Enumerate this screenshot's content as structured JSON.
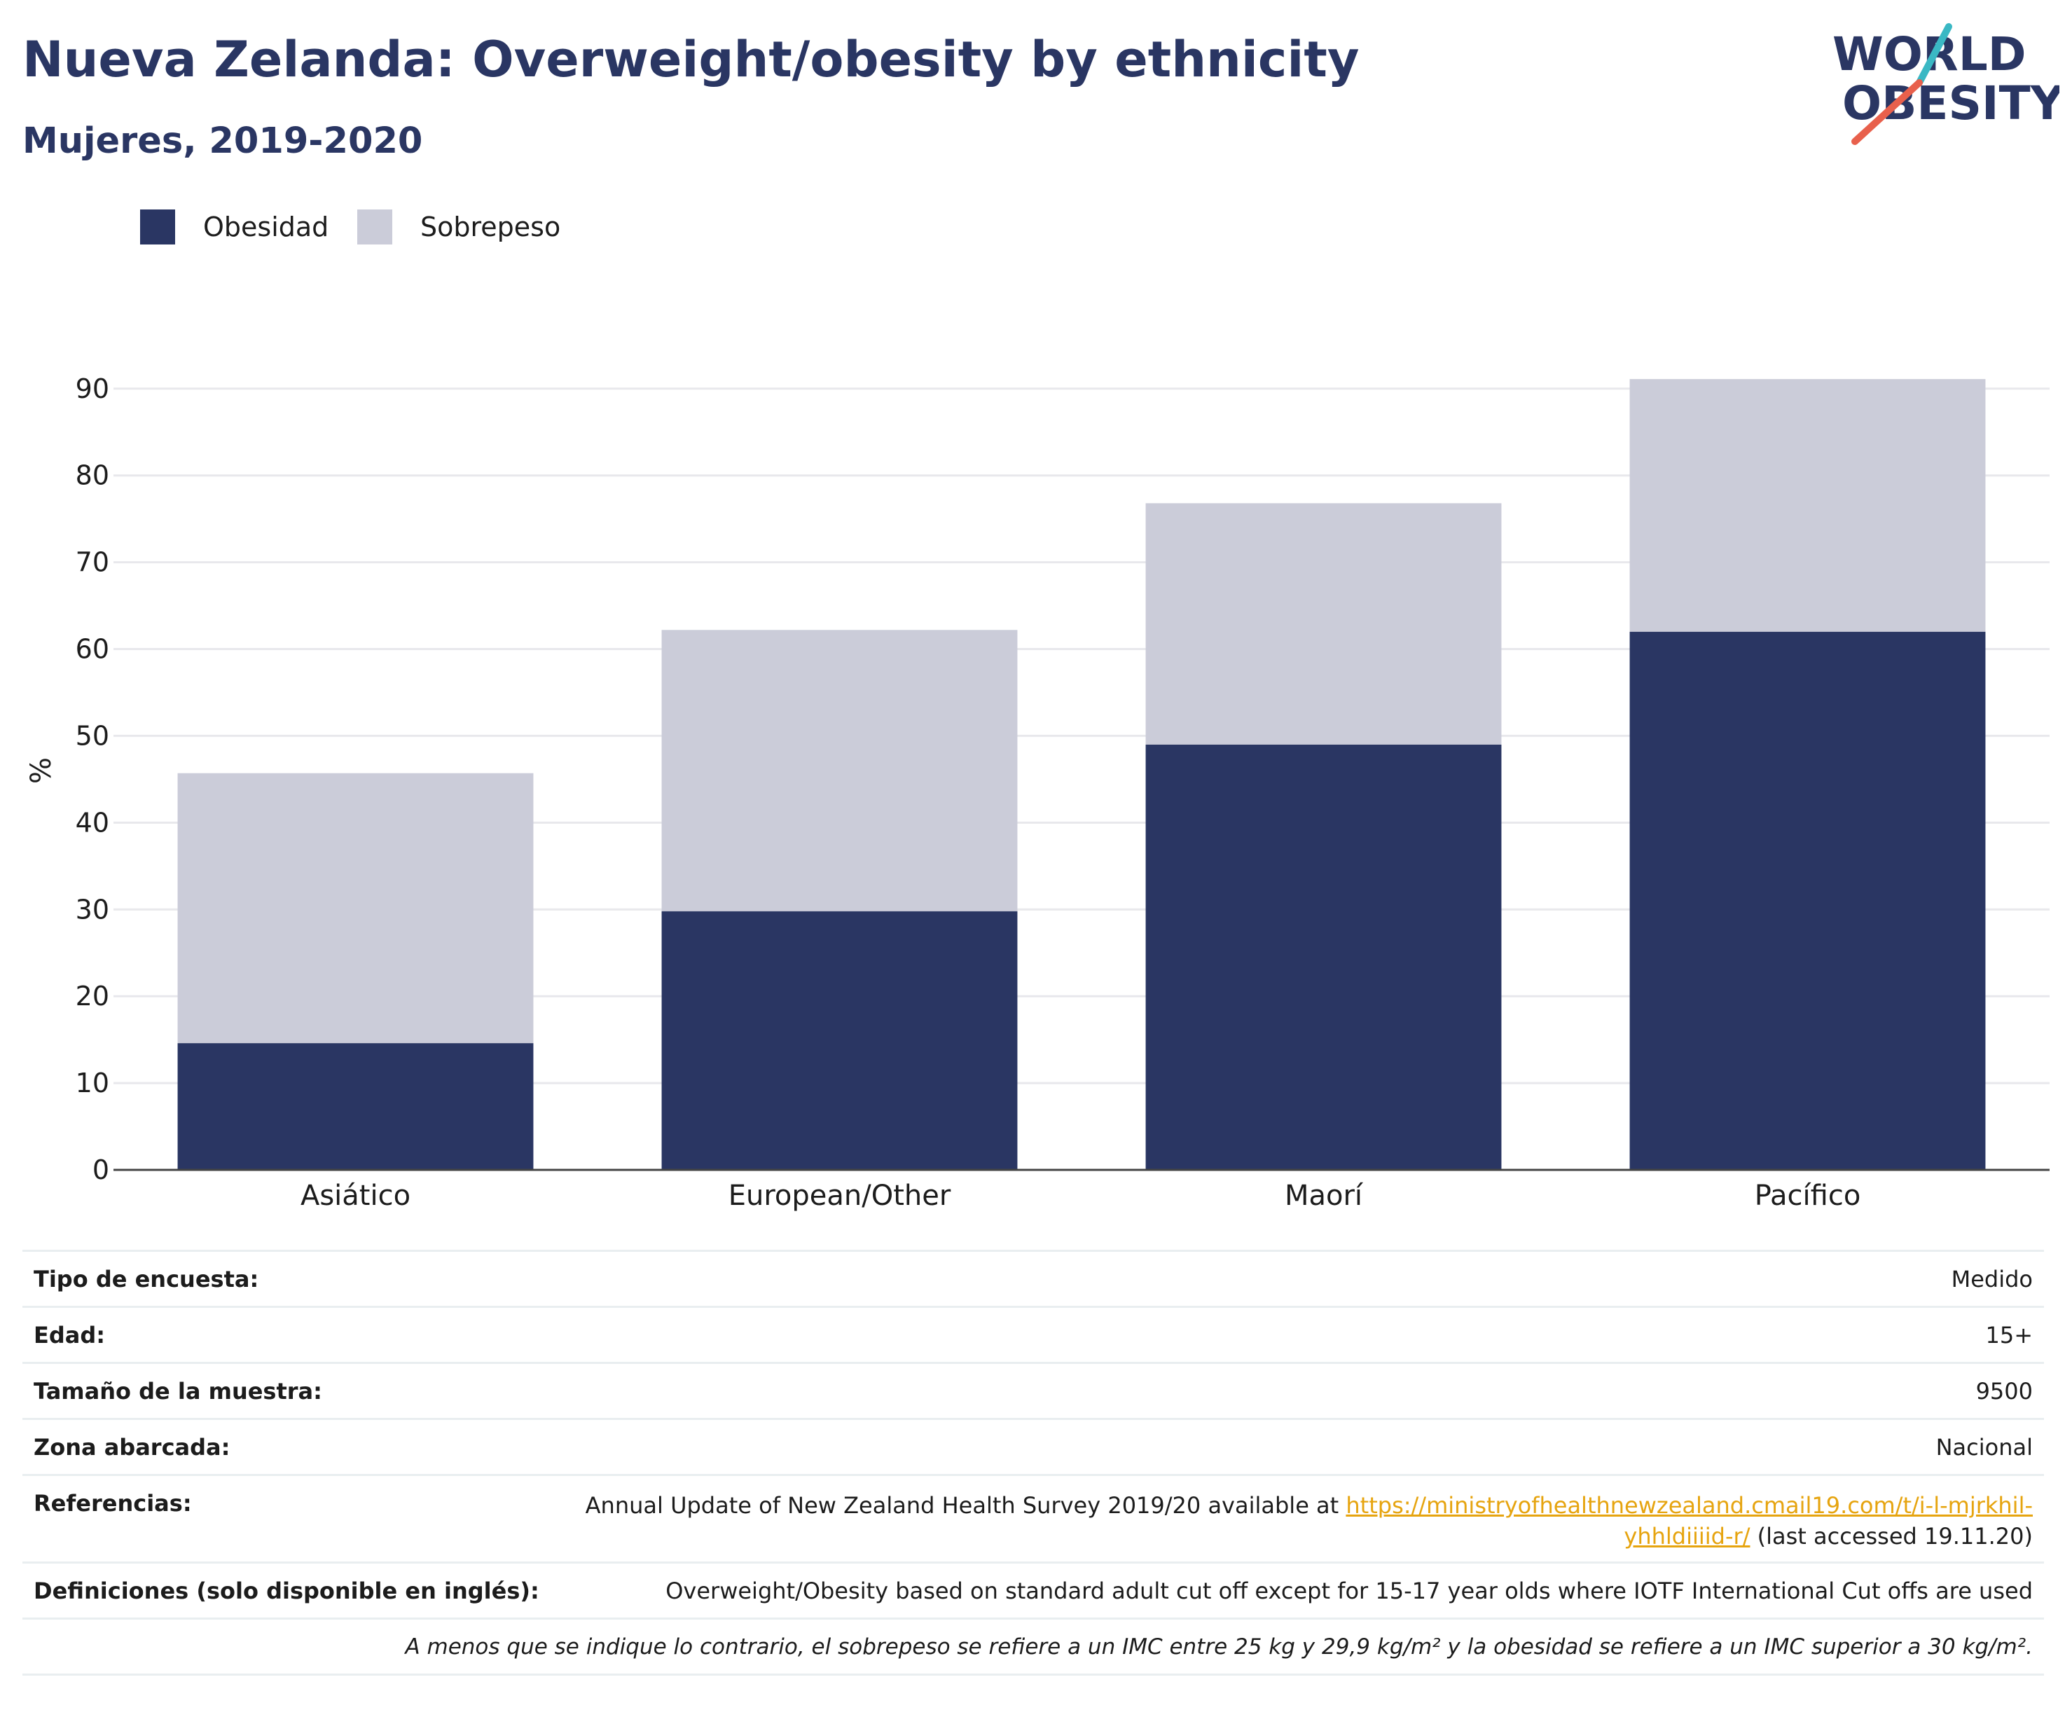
{
  "header": {
    "title": "Nueva Zelanda: Overweight/obesity by ethnicity",
    "subtitle": "Mujeres, 2019-2020"
  },
  "logo": {
    "line1": "WORLD",
    "line2": "OBESITY"
  },
  "colors": {
    "obesity": "#2a3663",
    "overweight": "#cbccd9",
    "title": "#2a3663",
    "link": "#e6a40f",
    "logo_red": "#e8604c",
    "logo_teal": "#3ab8c4"
  },
  "legend": [
    {
      "label": "Obesidad",
      "color": "#2a3663"
    },
    {
      "label": "Sobrepeso",
      "color": "#cbccd9"
    }
  ],
  "chart_data": {
    "type": "bar",
    "stacked": true,
    "categories": [
      "Asiático",
      "European/Other",
      "Maorí",
      "Pacífico"
    ],
    "series": [
      {
        "name": "Obesidad",
        "values": [
          14.6,
          29.8,
          49.0,
          62.0
        ],
        "color": "#2a3663"
      },
      {
        "name": "Sobrepeso",
        "values": [
          31.1,
          32.4,
          27.8,
          29.1
        ],
        "color": "#cbccd9"
      }
    ],
    "ylabel": "%",
    "ylim": [
      0,
      92
    ],
    "yticks": [
      0,
      10,
      20,
      30,
      40,
      50,
      60,
      70,
      80,
      90
    ],
    "grid": true,
    "legend_position": "top-left"
  },
  "info": {
    "survey_type": {
      "key": "Tipo de encuesta:",
      "value": "Medido"
    },
    "age": {
      "key": "Edad:",
      "value": "15+"
    },
    "sample_size": {
      "key": "Tamaño de la muestra:",
      "value": "9500"
    },
    "area": {
      "key": "Zona abarcada:",
      "value": "Nacional"
    },
    "references": {
      "key": "Referencias:",
      "text_before": "Annual Update of New Zealand Health Survey 2019/20 available at ",
      "link": "https://ministryofhealthnewzealand.cmail19.com/t/i-l-mjrkhil-yhhldiiiid-r/",
      "text_after": " (last accessed 19.11.20)"
    },
    "definitions": {
      "key": "Definiciones (solo disponible en inglés):",
      "value": "Overweight/Obesity based on standard adult cut off except for 15-17 year olds where IOTF International Cut offs are used"
    },
    "note": "A menos que se indique lo contrario, el sobrepeso se refiere a un IMC entre 25 kg y 29,9 kg/m² y la obesidad se refiere a un IMC superior a 30 kg/m²."
  }
}
